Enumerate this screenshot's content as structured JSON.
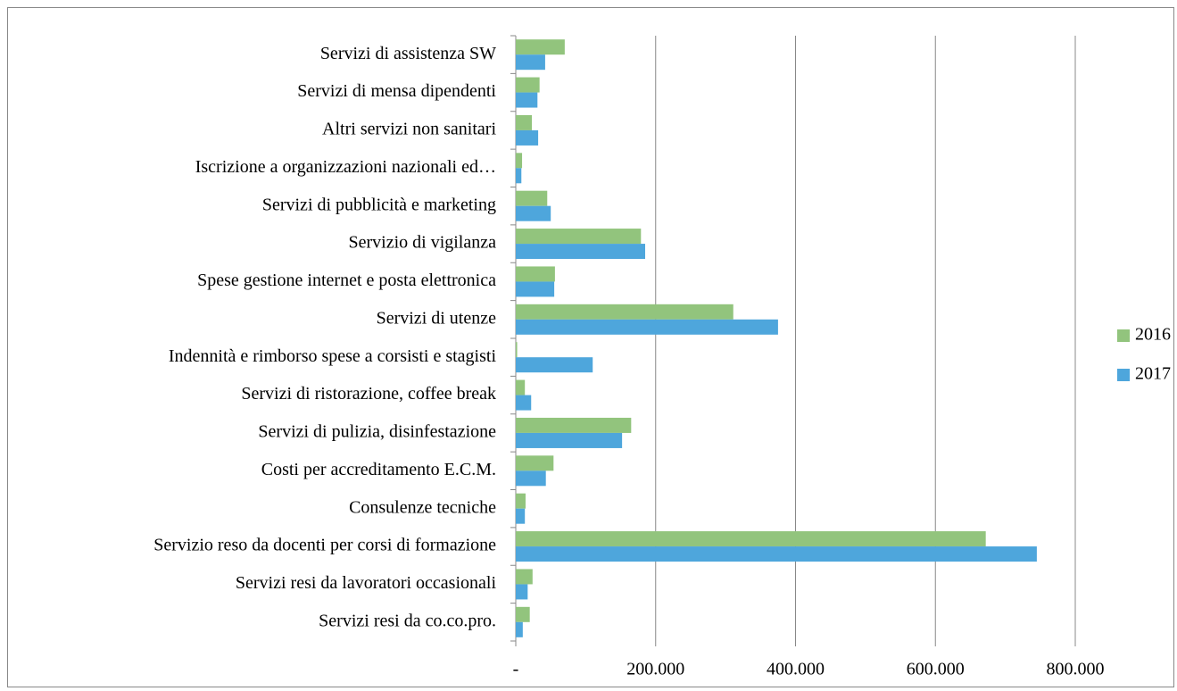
{
  "chart_data": {
    "type": "hbar",
    "categories": [
      "Servizi di assistenza SW",
      "Servizi di mensa dipendenti",
      "Altri servizi non sanitari",
      "Iscrizione a organizzazioni nazionali ed…",
      "Servizi di pubblicità e marketing",
      "Servizio di vigilanza",
      "Spese gestione internet e posta elettronica",
      "Servizi di utenze",
      "Indennità e rimborso spese a corsisti e stagisti",
      "Servizi di ristorazione, coffee break",
      "Servizi di pulizia, disinfestazione",
      "Costi per accreditamento E.C.M.",
      "Consulenze tecniche",
      "Servizio reso da docenti per corsi di formazione",
      "Servizi resi da lavoratori occasionali",
      "Servizi resi da co.co.pro."
    ],
    "series": [
      {
        "name": "2016",
        "color": "#92c47d",
        "values": [
          70000,
          34000,
          23000,
          9000,
          45000,
          179000,
          56000,
          311000,
          2000,
          13000,
          165000,
          54000,
          14000,
          672000,
          24000,
          20000
        ]
      },
      {
        "name": "2017",
        "color": "#4ea6dc",
        "values": [
          42000,
          31000,
          32000,
          8000,
          50000,
          185000,
          55000,
          375000,
          110000,
          22000,
          152000,
          43000,
          13000,
          745000,
          17000,
          10000
        ]
      }
    ],
    "xlim": [
      0,
      800000
    ],
    "xticks": [
      {
        "value": 0,
        "label": "-"
      },
      {
        "value": 200000,
        "label": "200.000"
      },
      {
        "value": 400000,
        "label": "400.000"
      },
      {
        "value": 600000,
        "label": "600.000"
      },
      {
        "value": 800000,
        "label": "800.000"
      }
    ],
    "grid": true,
    "legend": "right"
  }
}
